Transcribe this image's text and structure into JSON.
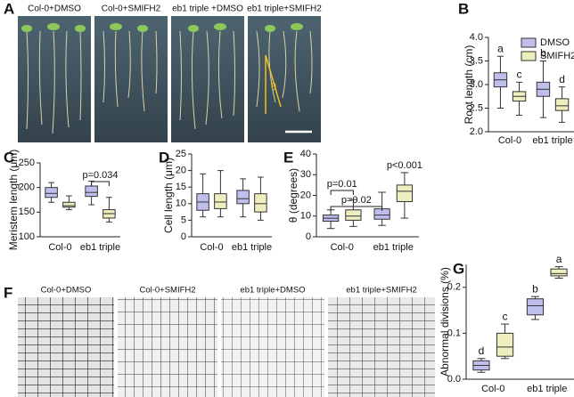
{
  "panel_labels": [
    "A",
    "B",
    "C",
    "D",
    "E",
    "F",
    "G"
  ],
  "photo_a": {
    "labels": [
      "Col-0+DMSO",
      "Col-0+SMIFH2",
      "eb1 triple +DMSO",
      "eb1 triple+SMIFH2"
    ],
    "angle": "θ"
  },
  "photo_f": {
    "labels": [
      "Col-0+DMSO",
      "Col-0+SMIFH2",
      "eb1 triple+DMSO",
      "eb1 triple+SMIFH2"
    ]
  },
  "chart_data": [
    {
      "type": "box",
      "ylabel": "Root length (cm)",
      "categories": [
        "Col-0",
        "eb1 triple"
      ],
      "legend": "top-right",
      "ylim": [
        2,
        4
      ],
      "yticks": [
        {
          "value": 2,
          "label": "2.0"
        },
        {
          "value": 2.5,
          "label": "2.5"
        },
        {
          "value": 3,
          "label": "3.0"
        },
        {
          "value": 3.5,
          "label": "3.5"
        },
        {
          "value": 4,
          "label": "4.0"
        }
      ],
      "series": [
        {
          "name": "DMSO",
          "color": "#bfbfee",
          "values": [
            [
              2.5,
              2.95,
              3.1,
              3.25,
              3.6
            ],
            [
              2.3,
              2.75,
              2.9,
              3.05,
              3.5
            ]
          ],
          "labels": [
            "a",
            "b"
          ]
        },
        {
          "name": "SMIFH2",
          "color": "#eeeebf",
          "values": [
            [
              2.35,
              2.65,
              2.75,
              2.85,
              3.05
            ],
            [
              2.2,
              2.45,
              2.55,
              2.7,
              2.95
            ]
          ],
          "labels": [
            "c",
            "d"
          ]
        }
      ]
    },
    {
      "type": "box",
      "ylabel": "Meristem length (μm)",
      "categories": [
        "Col-0",
        "eb1 triple"
      ],
      "ylim": [
        100,
        250
      ],
      "yticks": [
        100,
        150,
        200,
        250
      ],
      "series": [
        {
          "color": "#bfbfee",
          "values": [
            [
              170,
              180,
              188,
              200,
              210
            ],
            [
              165,
              182,
              190,
              203,
              213
            ]
          ]
        },
        {
          "color": "#eeeebf",
          "values": [
            [
              155,
              160,
              163,
              170,
              183
            ],
            [
              130,
              138,
              147,
              155,
              180
            ]
          ]
        }
      ],
      "annotations": [
        "p=0.034"
      ]
    },
    {
      "type": "box",
      "ylabel": "Cell length (μm)",
      "categories": [
        "Col-0",
        "eb1 triple"
      ],
      "ylim": [
        0,
        25
      ],
      "yticks": [
        0,
        5,
        10,
        15,
        20,
        25
      ],
      "series": [
        {
          "color": "#bfbfee",
          "values": [
            [
              6,
              8,
              10.5,
              13,
              19
            ],
            [
              6,
              10,
              11.5,
              14,
              17.5
            ]
          ]
        },
        {
          "color": "#eeeebf",
          "values": [
            [
              6,
              8.5,
              10.5,
              13,
              20
            ],
            [
              5,
              7.5,
              10,
              13,
              18
            ]
          ]
        }
      ]
    },
    {
      "type": "box",
      "ylabel": "θ (degrees)",
      "categories": [
        "Col-0",
        "eb1 triple"
      ],
      "ylim": [
        0,
        40
      ],
      "yticks": [
        0,
        10,
        20,
        30,
        40
      ],
      "series": [
        {
          "color": "#bfbfee",
          "values": [
            [
              4,
              7.5,
              9,
              10.5,
              13
            ],
            [
              5.5,
              8.5,
              10.5,
              13.5,
              21.5
            ]
          ]
        },
        {
          "color": "#eeeebf",
          "values": [
            [
              5,
              8,
              10,
              13,
              18
            ],
            [
              9,
              17,
              22,
              25,
              31
            ]
          ]
        }
      ],
      "annotations": [
        "p=0.02",
        "p=0.01",
        "p<0.001"
      ]
    },
    {
      "type": "box",
      "ylabel": "Abnormal divisions (%)",
      "categories": [
        "Col-0",
        "eb1 triple"
      ],
      "ylim": [
        0,
        0.25
      ],
      "yticks": [
        {
          "value": 0,
          "label": "0.0"
        },
        {
          "value": 0.1,
          "label": "0.1"
        },
        {
          "value": 0.2,
          "label": "0.2"
        }
      ],
      "series": [
        {
          "color": "#bfbfee",
          "values": [
            [
              0.015,
              0.02,
              0.03,
              0.04,
              0.045
            ],
            [
              0.13,
              0.14,
              0.16,
              0.175,
              0.18
            ]
          ],
          "labels": [
            "d",
            "b"
          ]
        },
        {
          "color": "#eeeebf",
          "values": [
            [
              0.045,
              0.05,
              0.07,
              0.1,
              0.12
            ],
            [
              0.22,
              0.225,
              0.23,
              0.24,
              0.245
            ]
          ],
          "labels": [
            "c",
            "a"
          ]
        }
      ]
    }
  ]
}
